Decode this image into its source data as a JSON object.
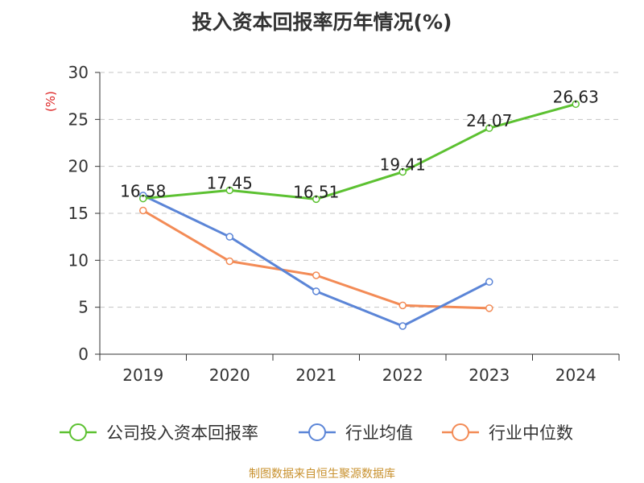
{
  "chart_data": {
    "type": "line",
    "title": "投入资本回报率历年情况(%)",
    "ylabel": "(%)",
    "categories": [
      "2019",
      "2020",
      "2021",
      "2022",
      "2023",
      "2024"
    ],
    "ylim": [
      0,
      30
    ],
    "yticks": [
      0,
      5,
      10,
      15,
      20,
      25,
      30
    ],
    "grid": true,
    "legend_position": "bottom",
    "series": [
      {
        "name": "公司投入资本回报率",
        "color": "#5cc131",
        "values": [
          16.58,
          17.45,
          16.51,
          19.41,
          24.07,
          26.63
        ],
        "show_labels": true
      },
      {
        "name": "行业均值",
        "color": "#5b85d7",
        "values": [
          16.9,
          12.5,
          6.7,
          3.0,
          7.7,
          null
        ],
        "show_labels": false
      },
      {
        "name": "行业中位数",
        "color": "#f38b56",
        "values": [
          15.3,
          9.9,
          8.4,
          5.2,
          4.9,
          null
        ],
        "show_labels": false
      }
    ]
  },
  "footer": {
    "source": "制图数据来自恒生聚源数据库"
  }
}
